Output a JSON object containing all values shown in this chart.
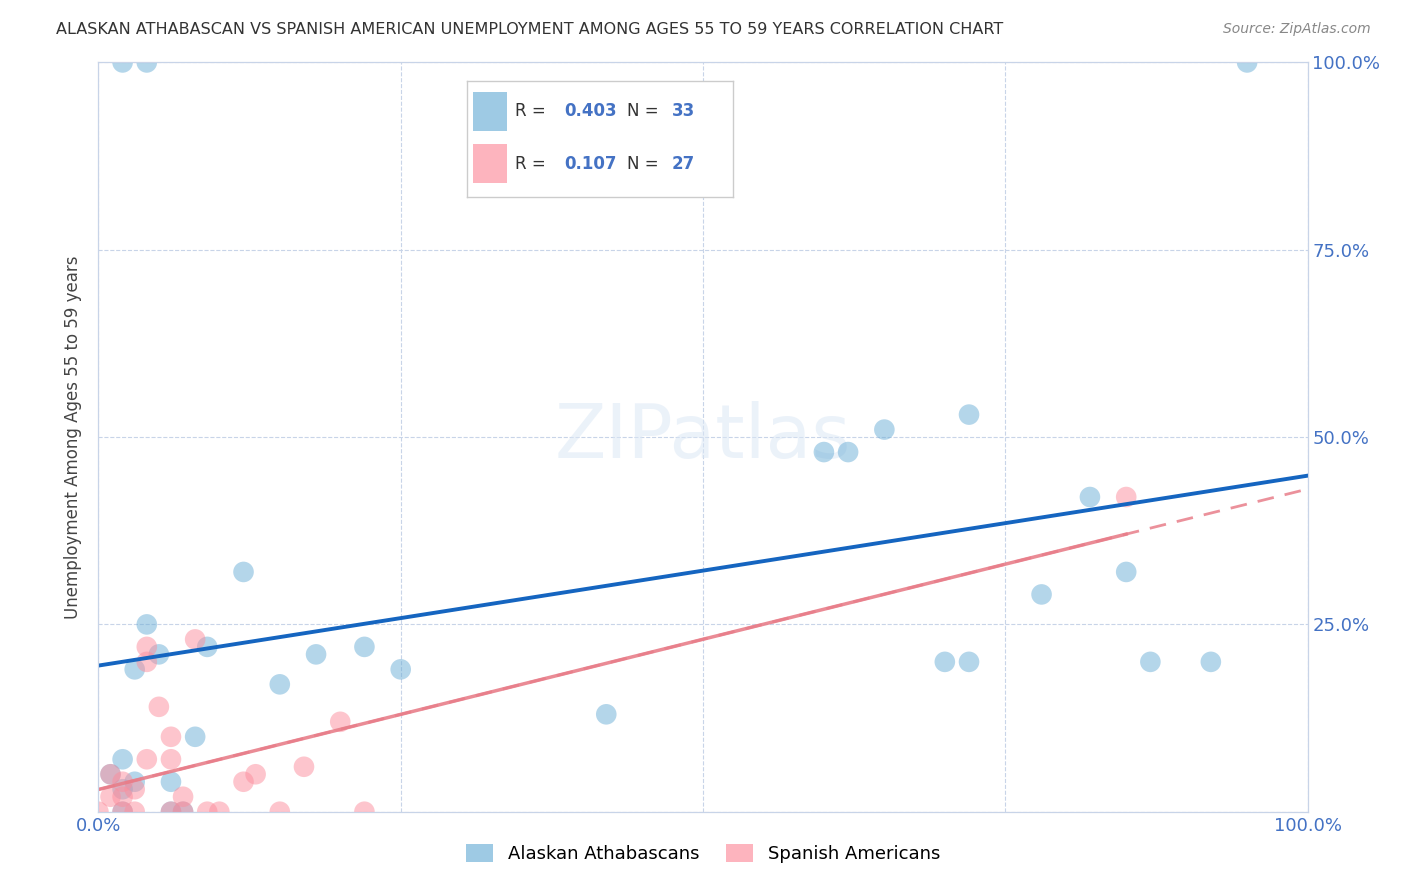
{
  "title": "ALASKAN ATHABASCAN VS SPANISH AMERICAN UNEMPLOYMENT AMONG AGES 55 TO 59 YEARS CORRELATION CHART",
  "source": "Source: ZipAtlas.com",
  "ylabel": "Unemployment Among Ages 55 to 59 years",
  "xlim": [
    0.0,
    1.0
  ],
  "ylim": [
    0.0,
    1.0
  ],
  "blue_R": 0.403,
  "blue_N": 33,
  "pink_R": 0.107,
  "pink_N": 27,
  "blue_color": "#6baed6",
  "pink_color": "#fc8d9c",
  "blue_line_color": "#1565c0",
  "pink_line_color": "#e87e8a",
  "watermark": "ZIPatlas",
  "blue_scatter_x": [
    0.04,
    0.08,
    0.02,
    0.02,
    0.03,
    0.05,
    0.01,
    0.02,
    0.03,
    0.06,
    0.09,
    0.12,
    0.18,
    0.15,
    0.22,
    0.25,
    0.42,
    0.6,
    0.62,
    0.65,
    0.7,
    0.72,
    0.72,
    0.78,
    0.82,
    0.85,
    0.87,
    0.92,
    0.02,
    0.04,
    0.06,
    0.07,
    0.95
  ],
  "blue_scatter_y": [
    0.25,
    0.1,
    0.03,
    0.07,
    0.19,
    0.21,
    0.05,
    0.0,
    0.04,
    0.04,
    0.22,
    0.32,
    0.21,
    0.17,
    0.22,
    0.19,
    0.13,
    0.48,
    0.48,
    0.51,
    0.2,
    0.2,
    0.53,
    0.29,
    0.42,
    0.32,
    0.2,
    0.2,
    1.0,
    1.0,
    0.0,
    0.0,
    1.0
  ],
  "pink_scatter_x": [
    0.0,
    0.01,
    0.01,
    0.02,
    0.02,
    0.02,
    0.03,
    0.03,
    0.04,
    0.04,
    0.04,
    0.05,
    0.06,
    0.06,
    0.06,
    0.07,
    0.07,
    0.08,
    0.09,
    0.1,
    0.12,
    0.13,
    0.15,
    0.17,
    0.2,
    0.22,
    0.85
  ],
  "pink_scatter_y": [
    0.0,
    0.02,
    0.05,
    0.0,
    0.02,
    0.04,
    0.0,
    0.03,
    0.22,
    0.2,
    0.07,
    0.14,
    0.07,
    0.1,
    0.0,
    0.02,
    0.0,
    0.23,
    0.0,
    0.0,
    0.04,
    0.05,
    0.0,
    0.06,
    0.12,
    0.0,
    0.42
  ],
  "background_color": "#ffffff",
  "grid_color": "#c8d4e8"
}
